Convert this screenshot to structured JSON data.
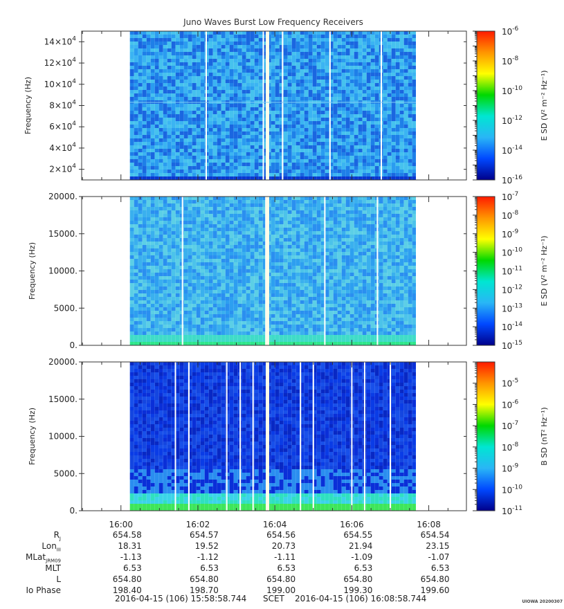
{
  "title": "Juno Waves Burst Low Frequency Receivers",
  "stamp": "UIOWA 20200307",
  "time_range": {
    "start": "2016-04-15 (106) 15:58:58.744",
    "label": "SCET",
    "end": "2016-04-15 (106) 16:08:58.744"
  },
  "time_ticks": [
    "16:00",
    "16:02",
    "16:04",
    "16:06",
    "16:08"
  ],
  "ephemeris": [
    {
      "label": "R",
      "sub": "J",
      "values": [
        "654.58",
        "654.57",
        "654.56",
        "654.55",
        "654.54"
      ]
    },
    {
      "label": "Lon",
      "sub": "III",
      "values": [
        "18.31",
        "19.52",
        "20.73",
        "21.94",
        "23.15"
      ]
    },
    {
      "label": "MLat",
      "sub": "JRM09",
      "values": [
        "-1.13",
        "-1.12",
        "-1.11",
        "-1.09",
        "-1.07"
      ]
    },
    {
      "label": "MLT",
      "sub": "",
      "values": [
        "6.53",
        "6.53",
        "6.53",
        "6.53",
        "6.53"
      ]
    },
    {
      "label": "L",
      "sub": "",
      "values": [
        "654.80",
        "654.80",
        "654.80",
        "654.80",
        "654.80"
      ]
    },
    {
      "label": "Io Phase",
      "sub": "",
      "values": [
        "198.40",
        "198.70",
        "199.00",
        "199.30",
        "199.60"
      ]
    }
  ],
  "chart_data": [
    {
      "type": "heatmap",
      "panel": "top",
      "ylabel": "Frequency (Hz)",
      "yticks": [
        20000,
        40000,
        60000,
        80000,
        100000,
        120000,
        140000
      ],
      "ytick_labels": [
        "2×10⁴",
        "4×10⁴",
        "6×10⁴",
        "8×10⁴",
        "10×10⁴",
        "12×10⁴",
        "14×10⁴"
      ],
      "ylim": [
        10000,
        150000
      ],
      "xlim": [
        "15:58:58.744",
        "16:08:58.744"
      ],
      "data_span": [
        "16:00:14",
        "16:07:40"
      ],
      "gap_times": [
        "16:02:13",
        "16:03:42",
        "16:04:12",
        "16:05:26",
        "16:06:46"
      ],
      "zlabel": "E SD (V² m⁻² Hz⁻¹)",
      "zlog_range": [
        -16,
        -6
      ],
      "zticks": [
        -16,
        -14,
        -12,
        -10,
        -8,
        -6
      ],
      "level_log": -14.2,
      "colors": [
        "#00008a",
        "#0048ff",
        "#29b6f6",
        "#00e6d2",
        "#00d800",
        "#ffff00",
        "#ff9500",
        "#ff1a00"
      ],
      "cell_colors": [
        "#1e7fe8",
        "#2a9cf0",
        "#3bb4f2",
        "#46c2ee",
        "#1a66e0"
      ]
    },
    {
      "type": "heatmap",
      "panel": "middle",
      "ylabel": "Frequency (Hz)",
      "yticks": [
        0,
        5000,
        10000,
        15000,
        20000
      ],
      "ytick_labels": [
        "0.",
        "5000.",
        "10000.",
        "15000.",
        "20000."
      ],
      "ylim": [
        0,
        20000
      ],
      "xlim": [
        "15:58:58.744",
        "16:08:58.744"
      ],
      "data_span": [
        "16:00:14",
        "16:07:40"
      ],
      "gap_times": [
        "16:01:36",
        "16:03:46",
        "16:05:18",
        "16:06:40"
      ],
      "zlabel": "E SD (V² m⁻² Hz⁻¹)",
      "zlog_range": [
        -15,
        -7
      ],
      "zticks": [
        -15,
        -14,
        -13,
        -12,
        -11,
        -10,
        -9,
        -8,
        -7
      ],
      "level_log": -13.1,
      "colors": [
        "#00008a",
        "#0048ff",
        "#29b6f6",
        "#00e6d2",
        "#00d800",
        "#ffff00",
        "#ff9500",
        "#ff1a00"
      ],
      "cell_colors": [
        "#3ab0ee",
        "#4cc3ea",
        "#2d9ff0",
        "#5ccfe6",
        "#2a8ff0"
      ]
    },
    {
      "type": "heatmap",
      "panel": "bottom",
      "ylabel": "Frequency (Hz)",
      "yticks": [
        0,
        5000,
        10000,
        15000,
        20000
      ],
      "ytick_labels": [
        "0.",
        "5000.",
        "10000.",
        "15000.",
        "20000."
      ],
      "ylim": [
        0,
        20000
      ],
      "xlim": [
        "15:58:58.744",
        "16:08:58.744"
      ],
      "data_span": [
        "16:00:14",
        "16:07:40"
      ],
      "gap_times": [
        "16:01:25",
        "16:01:46",
        "16:02:45",
        "16:03:06",
        "16:03:26",
        "16:04:40",
        "16:05:00",
        "16:06:00",
        "16:06:20",
        "16:07:00"
      ],
      "zlabel": "B SD (nT² Hz⁻¹)",
      "zlog_range": [
        -11,
        -4
      ],
      "zticks": [
        -11,
        -10,
        -9,
        -8,
        -7,
        -6,
        -5
      ],
      "level_log": -10.2,
      "colors": [
        "#00008a",
        "#0048ff",
        "#29b6f6",
        "#00e6d2",
        "#00d800",
        "#ffff00",
        "#ff9500",
        "#ff1a00"
      ],
      "cell_colors": [
        "#0a2fd8",
        "#0a3ce6",
        "#1850ea",
        "#0828c4",
        "#1446e0"
      ]
    }
  ]
}
